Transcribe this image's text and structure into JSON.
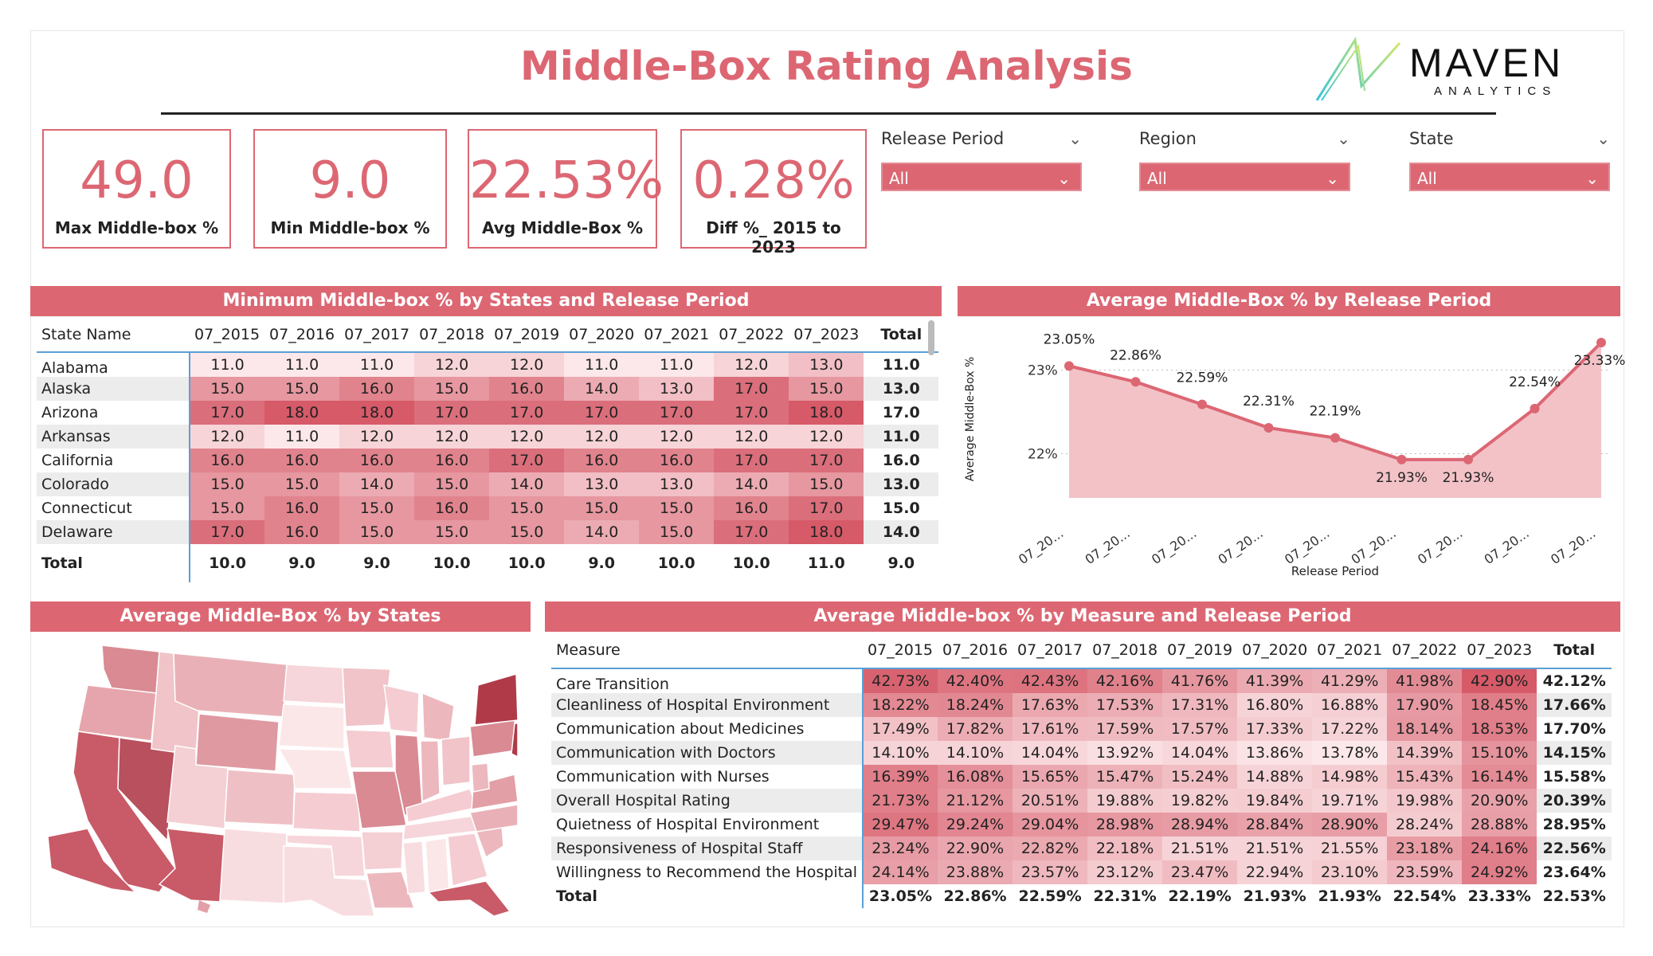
{
  "title": "Middle-Box Rating Analysis",
  "logo": {
    "brand": "MAVEN",
    "sub": "ANALYTICS"
  },
  "kpis": [
    {
      "value": "49.0",
      "label": "Max Middle-box %"
    },
    {
      "value": "9.0",
      "label": "Min Middle-box %"
    },
    {
      "value": "22.53%",
      "label": "Avg Middle-Box %"
    },
    {
      "value": "0.28%",
      "label": "Diff %_ 2015 to 2023"
    }
  ],
  "slicers": [
    {
      "label": "Release Period",
      "value": "All"
    },
    {
      "label": "Region",
      "value": "All"
    },
    {
      "label": "State",
      "value": "All"
    }
  ],
  "colors": {
    "accent": "#dc6773",
    "heat_low": "#fbe3e6",
    "heat_high": "#d9606d"
  },
  "min_table": {
    "title": "Minimum Middle-box % by States and Release Period",
    "columns": [
      "State Name",
      "07_2015",
      "07_2016",
      "07_2017",
      "07_2018",
      "07_2019",
      "07_2020",
      "07_2021",
      "07_2022",
      "07_2023",
      "Total"
    ],
    "rows": [
      {
        "name": "Alabama",
        "values": [
          "11.0",
          "11.0",
          "11.0",
          "12.0",
          "12.0",
          "11.0",
          "11.0",
          "12.0",
          "13.0"
        ],
        "total": "11.0"
      },
      {
        "name": "Alaska",
        "values": [
          "15.0",
          "15.0",
          "16.0",
          "15.0",
          "16.0",
          "14.0",
          "13.0",
          "17.0",
          "15.0"
        ],
        "total": "13.0"
      },
      {
        "name": "Arizona",
        "values": [
          "17.0",
          "18.0",
          "18.0",
          "17.0",
          "17.0",
          "17.0",
          "17.0",
          "17.0",
          "18.0"
        ],
        "total": "17.0"
      },
      {
        "name": "Arkansas",
        "values": [
          "12.0",
          "11.0",
          "12.0",
          "12.0",
          "12.0",
          "12.0",
          "12.0",
          "12.0",
          "12.0"
        ],
        "total": "11.0"
      },
      {
        "name": "California",
        "values": [
          "16.0",
          "16.0",
          "16.0",
          "16.0",
          "17.0",
          "16.0",
          "16.0",
          "17.0",
          "17.0"
        ],
        "total": "16.0"
      },
      {
        "name": "Colorado",
        "values": [
          "15.0",
          "15.0",
          "14.0",
          "15.0",
          "14.0",
          "13.0",
          "13.0",
          "14.0",
          "15.0"
        ],
        "total": "13.0"
      },
      {
        "name": "Connecticut",
        "values": [
          "15.0",
          "16.0",
          "15.0",
          "16.0",
          "15.0",
          "15.0",
          "15.0",
          "16.0",
          "17.0"
        ],
        "total": "15.0"
      },
      {
        "name": "Delaware",
        "values": [
          "17.0",
          "16.0",
          "15.0",
          "15.0",
          "15.0",
          "14.0",
          "15.0",
          "17.0",
          "18.0"
        ],
        "total": "14.0"
      }
    ],
    "total_row": {
      "name": "Total",
      "values": [
        "10.0",
        "9.0",
        "9.0",
        "10.0",
        "10.0",
        "9.0",
        "10.0",
        "10.0",
        "11.0"
      ],
      "total": "9.0"
    }
  },
  "chart_data": {
    "type": "area",
    "title": "Average Middle-Box % by Release Period",
    "xlabel": "Release Period",
    "ylabel": "Average Middle-Box %",
    "categories": [
      "07_20...",
      "07_20...",
      "07_20...",
      "07_20...",
      "07_20...",
      "07_20...",
      "07_20...",
      "07_20...",
      "07_20..."
    ],
    "values": [
      23.05,
      22.86,
      22.59,
      22.31,
      22.19,
      21.93,
      21.93,
      22.54,
      23.33
    ],
    "data_labels": [
      "23.05%",
      "22.86%",
      "22.59%",
      "22.31%",
      "22.19%",
      "21.93%",
      "21.93%",
      "22.54%",
      "23.33%"
    ],
    "y_ticks": [
      "23%",
      "22%"
    ],
    "y_tick_values": [
      23,
      22
    ],
    "ylim": [
      21.5,
      23.33
    ],
    "grid": true,
    "color": "#dc6773"
  },
  "map": {
    "title": "Average Middle-Box % by States"
  },
  "measure_table": {
    "title": "Average Middle-box % by Measure and Release Period",
    "columns": [
      "Measure",
      "07_2015",
      "07_2016",
      "07_2017",
      "07_2018",
      "07_2019",
      "07_2020",
      "07_2021",
      "07_2022",
      "07_2023",
      "Total"
    ],
    "rows": [
      {
        "name": "Care Transition",
        "values": [
          "42.73%",
          "42.40%",
          "42.43%",
          "42.16%",
          "41.76%",
          "41.39%",
          "41.29%",
          "41.98%",
          "42.90%"
        ],
        "total": "42.12%"
      },
      {
        "name": "Cleanliness of Hospital Environment",
        "values": [
          "18.22%",
          "18.24%",
          "17.63%",
          "17.53%",
          "17.31%",
          "16.80%",
          "16.88%",
          "17.90%",
          "18.45%"
        ],
        "total": "17.66%"
      },
      {
        "name": "Communication about Medicines",
        "values": [
          "17.49%",
          "17.82%",
          "17.61%",
          "17.59%",
          "17.57%",
          "17.33%",
          "17.22%",
          "18.14%",
          "18.53%"
        ],
        "total": "17.70%"
      },
      {
        "name": "Communication with Doctors",
        "values": [
          "14.10%",
          "14.10%",
          "14.04%",
          "13.92%",
          "14.04%",
          "13.86%",
          "13.78%",
          "14.39%",
          "15.10%"
        ],
        "total": "14.15%"
      },
      {
        "name": "Communication with Nurses",
        "values": [
          "16.39%",
          "16.08%",
          "15.65%",
          "15.47%",
          "15.24%",
          "14.88%",
          "14.98%",
          "15.43%",
          "16.14%"
        ],
        "total": "15.58%"
      },
      {
        "name": "Overall Hospital Rating",
        "values": [
          "21.73%",
          "21.12%",
          "20.51%",
          "19.88%",
          "19.82%",
          "19.84%",
          "19.71%",
          "19.98%",
          "20.90%"
        ],
        "total": "20.39%"
      },
      {
        "name": "Quietness of Hospital Environment",
        "values": [
          "29.47%",
          "29.24%",
          "29.04%",
          "28.98%",
          "28.94%",
          "28.84%",
          "28.90%",
          "28.24%",
          "28.88%"
        ],
        "total": "28.95%"
      },
      {
        "name": "Responsiveness of Hospital Staff",
        "values": [
          "23.24%",
          "22.90%",
          "22.82%",
          "22.18%",
          "21.51%",
          "21.51%",
          "21.55%",
          "23.18%",
          "24.16%"
        ],
        "total": "22.56%"
      },
      {
        "name": "Willingness to Recommend the Hospital",
        "values": [
          "24.14%",
          "23.88%",
          "23.57%",
          "23.12%",
          "23.47%",
          "22.94%",
          "23.10%",
          "23.59%",
          "24.92%"
        ],
        "total": "23.64%"
      }
    ],
    "total_row": {
      "name": "Total",
      "values": [
        "23.05%",
        "22.86%",
        "22.59%",
        "22.31%",
        "22.19%",
        "21.93%",
        "21.93%",
        "22.54%",
        "23.33%"
      ],
      "total": "22.53%"
    }
  }
}
